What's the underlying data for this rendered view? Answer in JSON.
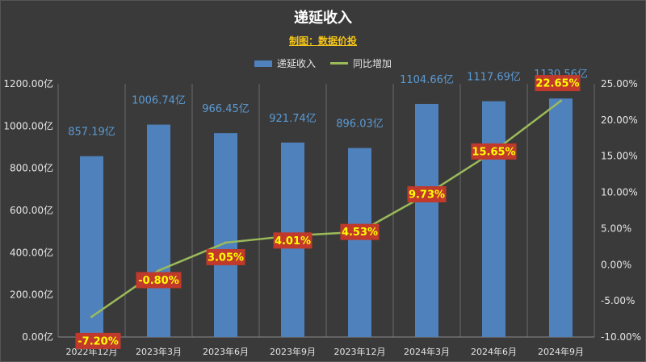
{
  "chart_data": {
    "type": "bar",
    "title": "递延收入",
    "subtitle": "制图：数据价投",
    "categories": [
      "2022年12月",
      "2023年3月",
      "2023年6月",
      "2023年9月",
      "2023年12月",
      "2024年3月",
      "2024年6月",
      "2024年9月"
    ],
    "series": [
      {
        "name": "递延收入",
        "type": "bar",
        "axis": "left",
        "values": [
          857.19,
          1006.74,
          966.45,
          921.74,
          896.03,
          1104.66,
          1117.69,
          1130.56
        ],
        "data_labels": [
          "857.19亿",
          "1006.74亿",
          "966.45亿",
          "921.74亿",
          "896.03亿",
          "1104.66亿",
          "1117.69亿",
          "1130.56亿"
        ]
      },
      {
        "name": "同比增加",
        "type": "line",
        "axis": "right",
        "values": [
          -7.2,
          -0.8,
          3.05,
          4.01,
          4.53,
          9.73,
          15.65,
          22.65
        ],
        "data_labels": [
          "-7.20%",
          "-0.80%",
          "3.05%",
          "4.01%",
          "4.53%",
          "9.73%",
          "15.65%",
          "22.65%"
        ]
      }
    ],
    "y_left": {
      "range": [
        0,
        1200
      ],
      "ticks": [
        0,
        200,
        400,
        600,
        800,
        1000,
        1200
      ],
      "tick_labels": [
        "0.00亿",
        "200.00亿",
        "400.00亿",
        "600.00亿",
        "800.00亿",
        "1000.00亿",
        "1200.00亿"
      ]
    },
    "y_right": {
      "range": [
        -10,
        25
      ],
      "ticks": [
        -10,
        -5,
        0,
        5,
        10,
        15,
        20,
        25
      ],
      "tick_labels": [
        "-10.00%",
        "-5.00%",
        "0.00%",
        "5.00%",
        "10.00%",
        "15.00%",
        "20.00%",
        "25.00%"
      ]
    },
    "grid": true,
    "legend_position": "top-center",
    "colors": {
      "background": "#3a3a3a",
      "bar": "#4f81bd",
      "line": "#9bbb59",
      "bar_label": "#5b9bd5",
      "pct_label_bg": "#c0392b",
      "pct_label_text": "#ffff00",
      "subtitle": "#f5c518",
      "grid": "#6a6a6a"
    }
  }
}
